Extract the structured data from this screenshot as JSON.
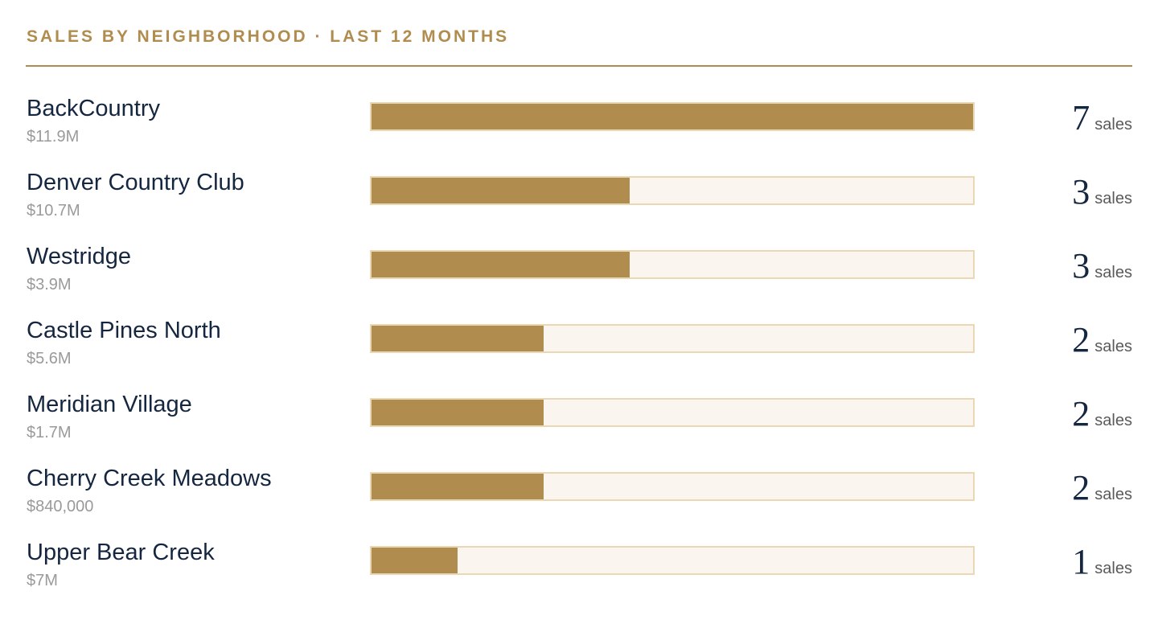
{
  "header": {
    "title": "SALES BY NEIGHBORHOOD · LAST 12 MONTHS"
  },
  "colors": {
    "accent": "#b08c4f",
    "text": "#152640",
    "muted": "#9a9a9a",
    "track": "#faf6ef",
    "track_border": "#ead7b4"
  },
  "chart_data": {
    "type": "bar",
    "title": "SALES BY NEIGHBORHOOD · LAST 12 MONTHS",
    "orientation": "horizontal",
    "categories": [
      "BackCountry",
      "Denver Country Club",
      "Westridge",
      "Castle Pines North",
      "Meridian Village",
      "Cherry Creek Meadows",
      "Upper Bear Creek"
    ],
    "values": [
      7,
      3,
      3,
      2,
      2,
      2,
      1
    ],
    "secondary_labels": [
      "$11.9M",
      "$10.7M",
      "$3.9M",
      "$5.6M",
      "$1.7M",
      "$840,000",
      "$7M"
    ],
    "value_unit": "sales",
    "xlim": [
      0,
      7
    ],
    "grid": false,
    "legend": "none"
  }
}
